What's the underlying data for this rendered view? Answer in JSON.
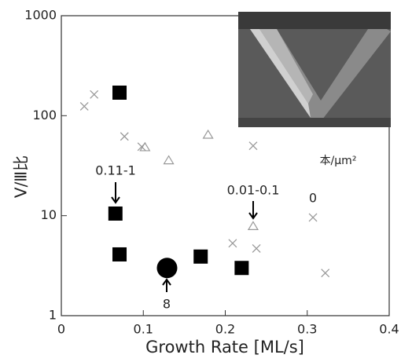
{
  "chart_data": {
    "type": "scatter",
    "xlabel": "Growth Rate [ML/s]",
    "ylabel": "V/Ⅲ比",
    "xlim": [
      0,
      0.4
    ],
    "xticks": [
      0,
      0.1,
      0.2,
      0.3,
      0.4
    ],
    "ylim": [
      1,
      1000
    ],
    "yticks": [
      1,
      10,
      100,
      1000
    ],
    "yscale": "log",
    "series": [
      {
        "marker": "square",
        "color": "#000000",
        "x": [
          0.071,
          0.066,
          0.071,
          0.17,
          0.22
        ],
        "values": [
          170,
          10.5,
          4.1,
          3.9,
          3.0
        ]
      },
      {
        "marker": "circle",
        "color": "#000000",
        "x": [
          0.129
        ],
        "values": [
          3.0
        ]
      },
      {
        "marker": "cross",
        "color": "#999999",
        "x": [
          0.028,
          0.04,
          0.077,
          0.098,
          0.234,
          0.209,
          0.238,
          0.307,
          0.322
        ],
        "values": [
          124,
          163,
          62,
          49,
          50,
          5.3,
          4.7,
          9.6,
          2.67
        ]
      },
      {
        "marker": "triangle",
        "color": "#999999",
        "x": [
          0.102,
          0.131,
          0.179,
          0.234
        ],
        "values": [
          48,
          35.5,
          64,
          7.8
        ]
      }
    ],
    "annotations": [
      "0.11-1",
      "0.01-0.1",
      "0",
      "8",
      "本/μm²"
    ]
  }
}
